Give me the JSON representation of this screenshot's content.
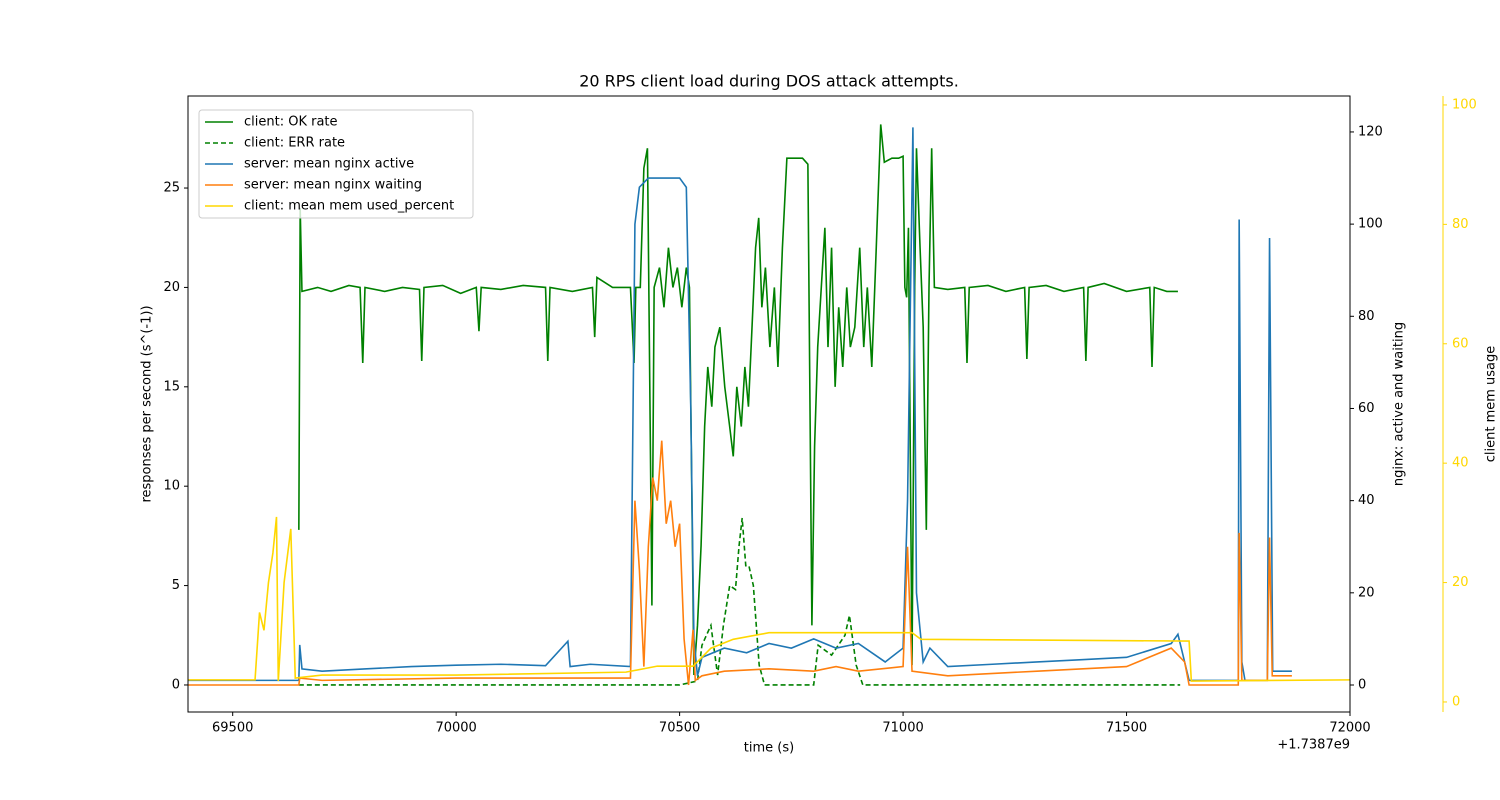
{
  "chart_data": {
    "type": "line",
    "title": "20 RPS client load during DOS attack attempts.",
    "x_label": "time (s)",
    "x_offset_label": "+1.7387e9",
    "y_label": "responses per second (s^(-1))",
    "y2_label": "nginx: active and waiting",
    "y3_label": "client mem usage",
    "xlim": [
      69400,
      72000
    ],
    "xticks": [
      69500,
      70000,
      70500,
      71000,
      71500,
      72000
    ],
    "ylim": [
      -1.36,
      29.63
    ],
    "yticks": [
      0,
      5,
      10,
      15,
      20,
      25
    ],
    "y2lim": [
      -5.86,
      127.8
    ],
    "y2ticks": [
      0,
      20,
      40,
      60,
      80,
      100,
      120
    ],
    "y3lim": [
      -1.68,
      101.5
    ],
    "y3ticks": [
      0,
      20,
      40,
      60,
      80,
      100
    ],
    "y3_color": "#ffd700",
    "legend": "upper left",
    "series": [
      {
        "name": "client: OK rate",
        "color": "#008000",
        "axis": "y",
        "dash": false,
        "x": [
          69648,
          69651,
          69655,
          69690,
          69720,
          69760,
          69785,
          69791,
          69796,
          69840,
          69880,
          69918,
          69923,
          69928,
          69970,
          70010,
          70045,
          70051,
          70056,
          70100,
          70150,
          70200,
          70205,
          70210,
          70260,
          70305,
          70310,
          70315,
          70350,
          70390,
          70398,
          70402,
          70412,
          70420,
          70428,
          70432,
          70438,
          70443,
          70455,
          70465,
          70475,
          70485,
          70495,
          70505,
          70515,
          70522,
          70532,
          70540,
          70548,
          70556,
          70563,
          70572,
          70579,
          70590,
          70601,
          70612,
          70620,
          70628,
          70638,
          70646,
          70654,
          70662,
          70670,
          70677,
          70684,
          70692,
          70702,
          70712,
          70720,
          70730,
          70740,
          70760,
          70775,
          70787,
          70796,
          70802,
          70809,
          70817,
          70825,
          70832,
          70840,
          70848,
          70856,
          70865,
          70874,
          70882,
          70892,
          70903,
          70912,
          70920,
          70930,
          70940,
          70950,
          70958,
          70975,
          70990,
          71000,
          71004,
          71008,
          71012,
          71020,
          71026,
          71030,
          71038,
          71045,
          71052,
          71058,
          71064,
          71070,
          71100,
          71138,
          71143,
          71148,
          71190,
          71230,
          71272,
          71277,
          71282,
          71320,
          71360,
          71404,
          71409,
          71414,
          71450,
          71500,
          71552,
          71557,
          71562,
          71590,
          71615
        ],
        "values": [
          7.8,
          24,
          19.8,
          20,
          19.8,
          20.1,
          20,
          16.2,
          20,
          19.8,
          20,
          19.9,
          16.3,
          20,
          20.1,
          19.7,
          20,
          17.8,
          20,
          19.9,
          20.1,
          20,
          16.3,
          20,
          19.8,
          20,
          17.5,
          20.5,
          20,
          20,
          16.2,
          20,
          20,
          26,
          27,
          18,
          4,
          20,
          21,
          19,
          22,
          20,
          21,
          19,
          21,
          20,
          0.5,
          3,
          7,
          13,
          16,
          14,
          17,
          18,
          15,
          13,
          11.5,
          15,
          13,
          16,
          14,
          18,
          22,
          23.5,
          19,
          21,
          17,
          20,
          16,
          22,
          26.5,
          26.5,
          26.5,
          26.2,
          3,
          12,
          17,
          20,
          23,
          17,
          22,
          15,
          19,
          16,
          20,
          17,
          18,
          22,
          17,
          20,
          16,
          22,
          28.2,
          26.3,
          26.5,
          26.5,
          26.6,
          20,
          19.5,
          23,
          1,
          20,
          27,
          22,
          18,
          7.8,
          20,
          27,
          20,
          19.9,
          20,
          16.2,
          20,
          20.1,
          19.8,
          20,
          16.4,
          20,
          20.1,
          19.8,
          20,
          16.3,
          20,
          20.2,
          19.8,
          20,
          16,
          20,
          19.8,
          19.8
        ]
      },
      {
        "name": "client: ERR rate",
        "color": "#008000",
        "axis": "y",
        "dash": true,
        "x": [
          69648,
          69800,
          70000,
          70200,
          70400,
          70500,
          70540,
          70550,
          70570,
          70585,
          70598,
          70612,
          70625,
          70633,
          70640,
          70648,
          70655,
          70665,
          70678,
          70690,
          70720,
          70775,
          70800,
          70810,
          70840,
          70870,
          70880,
          70895,
          70910,
          71200,
          71620
        ],
        "values": [
          0,
          0,
          0,
          0,
          0,
          0,
          0.2,
          2,
          3,
          0.5,
          3,
          5,
          4.8,
          7,
          8.4,
          6,
          6,
          5,
          1,
          0,
          0,
          0,
          0,
          2,
          1.5,
          2.5,
          3.5,
          1,
          0,
          0,
          0
        ]
      },
      {
        "name": "server: mean nginx active",
        "color": "#1f77b4",
        "axis": "y2",
        "dash": false,
        "x": [
          69400,
          69648,
          69650,
          69655,
          69700,
          69800,
          69900,
          70000,
          70100,
          70200,
          70250,
          70255,
          70300,
          70390,
          70400,
          70410,
          70430,
          70500,
          70515,
          70525,
          70532,
          70540,
          70550,
          70600,
          70650,
          70700,
          70750,
          70800,
          70850,
          70900,
          70960,
          71000,
          71010,
          71022,
          71030,
          71045,
          71060,
          71100,
          71200,
          71300,
          71400,
          71500,
          71600,
          71615,
          71640,
          71750,
          71752,
          71758,
          71765,
          71815,
          71820,
          71827,
          71830,
          71870
        ],
        "values": [
          1,
          1,
          8.7,
          3.5,
          3,
          3.5,
          4,
          4.3,
          4.5,
          4.2,
          9.5,
          4,
          4.5,
          4,
          100,
          108,
          110,
          110,
          108,
          60,
          10,
          2,
          6,
          8,
          7,
          9,
          8,
          10,
          8,
          9,
          5,
          8,
          40,
          121,
          20,
          5,
          8,
          4,
          4.5,
          5,
          5.5,
          6,
          9,
          11,
          1,
          1,
          101,
          5,
          1,
          1,
          97,
          3,
          3,
          3
        ]
      },
      {
        "name": "server: mean nginx waiting",
        "color": "#ff7f0e",
        "axis": "y2",
        "dash": false,
        "x": [
          69400,
          69648,
          69650,
          69700,
          70000,
          70390,
          70400,
          70410,
          70420,
          70430,
          70440,
          70450,
          70460,
          70470,
          70480,
          70490,
          70500,
          70510,
          70520,
          70530,
          70535,
          70550,
          70600,
          70700,
          70800,
          70850,
          70900,
          71000,
          71010,
          71020,
          71100,
          71300,
          71500,
          71600,
          71630,
          71640,
          71750,
          71752,
          71758,
          71815,
          71820,
          71826,
          71870
        ],
        "values": [
          0,
          0,
          1.5,
          1,
          1.5,
          1.5,
          40,
          25,
          4,
          30,
          45,
          40,
          53,
          35,
          40,
          30,
          35,
          10,
          0,
          12,
          1,
          2,
          3,
          3.5,
          3,
          4,
          3,
          4,
          30,
          3,
          2,
          3,
          4,
          8,
          5,
          0,
          0,
          33,
          1,
          1,
          32,
          2,
          2
        ]
      },
      {
        "name": "client: mean mem used_percent",
        "color": "#ffd700",
        "axis": "y3",
        "dash": false,
        "x": [
          69400,
          69550,
          69560,
          69570,
          69580,
          69590,
          69598,
          69602,
          69615,
          69630,
          69640,
          69700,
          70000,
          70380,
          70450,
          70530,
          70570,
          70620,
          70700,
          70800,
          71020,
          71040,
          71640,
          71645,
          72000
        ],
        "values": [
          3.7,
          3.7,
          15,
          12,
          20,
          25,
          31,
          3.5,
          20,
          29,
          4,
          4.5,
          4.5,
          5,
          6,
          6,
          9,
          10.5,
          11.6,
          11.6,
          11.6,
          10.5,
          10.2,
          3.5,
          3.7
        ]
      }
    ]
  }
}
